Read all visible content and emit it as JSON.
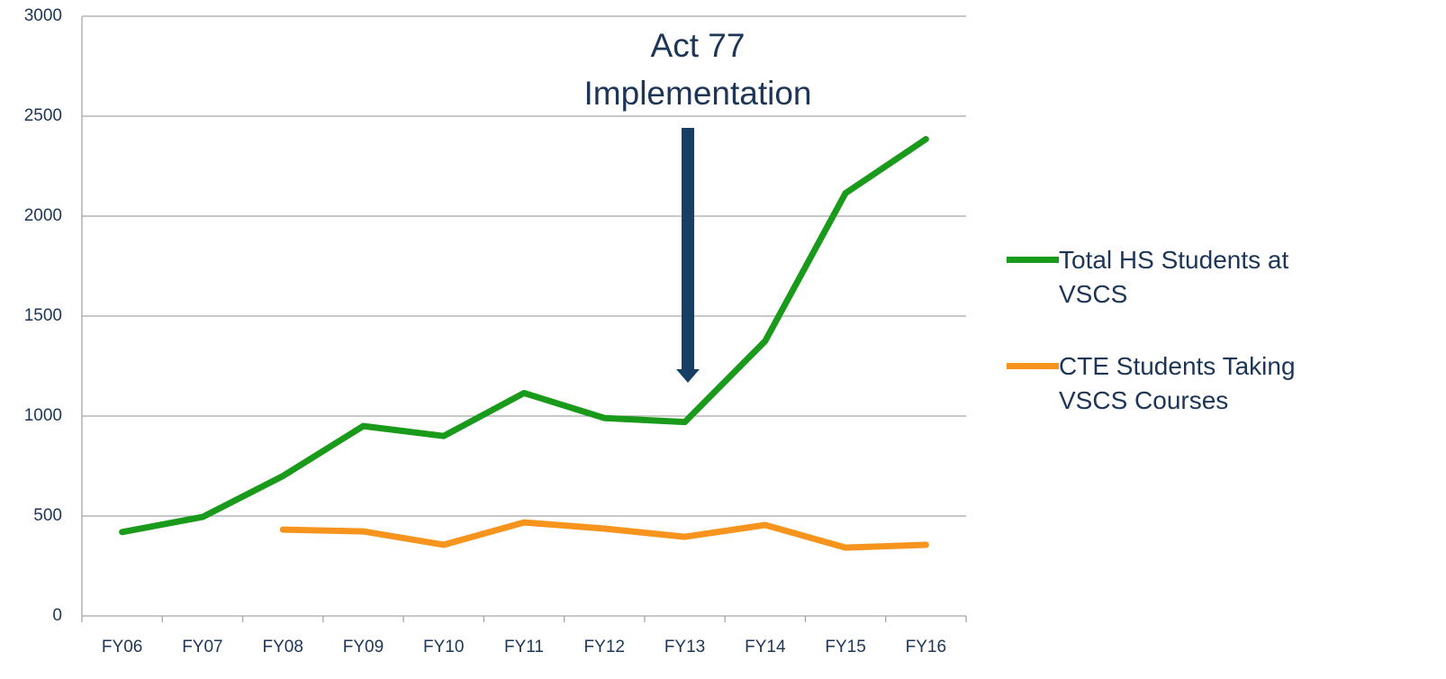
{
  "chart_data": {
    "type": "line",
    "annotation": [
      "Act 77",
      "Implementation"
    ],
    "categories": [
      "FY06",
      "FY07",
      "FY08",
      "FY09",
      "FY10",
      "FY11",
      "FY12",
      "FY13",
      "FY14",
      "FY15",
      "FY16"
    ],
    "series": [
      {
        "name": "Total HS Students at VSCS",
        "color": "#1a9a1a",
        "values": [
          420,
          495,
          700,
          950,
          900,
          1115,
          990,
          970,
          1375,
          2115,
          2385
        ]
      },
      {
        "name": "CTE Students Taking VSCS Courses",
        "color": "#f7941d",
        "values": [
          null,
          null,
          432,
          423,
          356,
          468,
          437,
          396,
          455,
          342,
          356
        ]
      }
    ],
    "ylim": [
      0,
      3000
    ],
    "yticks": [
      0,
      500,
      1000,
      1500,
      2000,
      2500,
      3000
    ],
    "grid": true,
    "legend": "right"
  }
}
